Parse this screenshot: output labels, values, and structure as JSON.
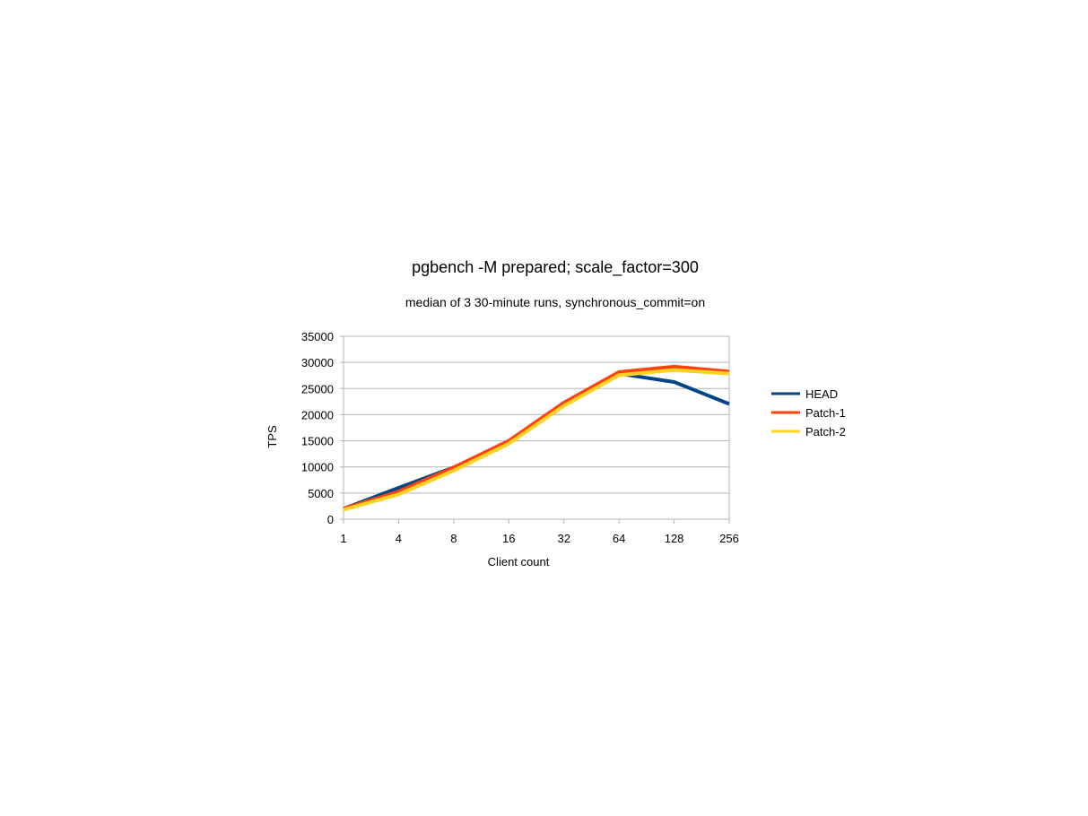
{
  "chart_data": {
    "type": "line",
    "title": "pgbench -M prepared; scale_factor=300",
    "subtitle": "median of 3 30-minute runs, synchronous_commit=on",
    "xlabel": "Client count",
    "ylabel": "TPS",
    "categories": [
      "1",
      "4",
      "8",
      "16",
      "32",
      "64",
      "128",
      "256"
    ],
    "ylim": [
      0,
      35000
    ],
    "yticks": [
      0,
      5000,
      10000,
      15000,
      20000,
      25000,
      30000,
      35000
    ],
    "grid": true,
    "legend_position": "right",
    "series": [
      {
        "name": "HEAD",
        "color": "#004586",
        "values": [
          2000,
          6000,
          9900,
          14850,
          22150,
          27850,
          26250,
          22050
        ]
      },
      {
        "name": "Patch-1",
        "color": "#ff420e",
        "values": [
          2000,
          5300,
          9900,
          15000,
          22300,
          28150,
          29200,
          28250
        ]
      },
      {
        "name": "Patch-2",
        "color": "#ffd320",
        "values": [
          1800,
          4750,
          9300,
          14450,
          21700,
          27550,
          28550,
          27850
        ]
      }
    ]
  }
}
